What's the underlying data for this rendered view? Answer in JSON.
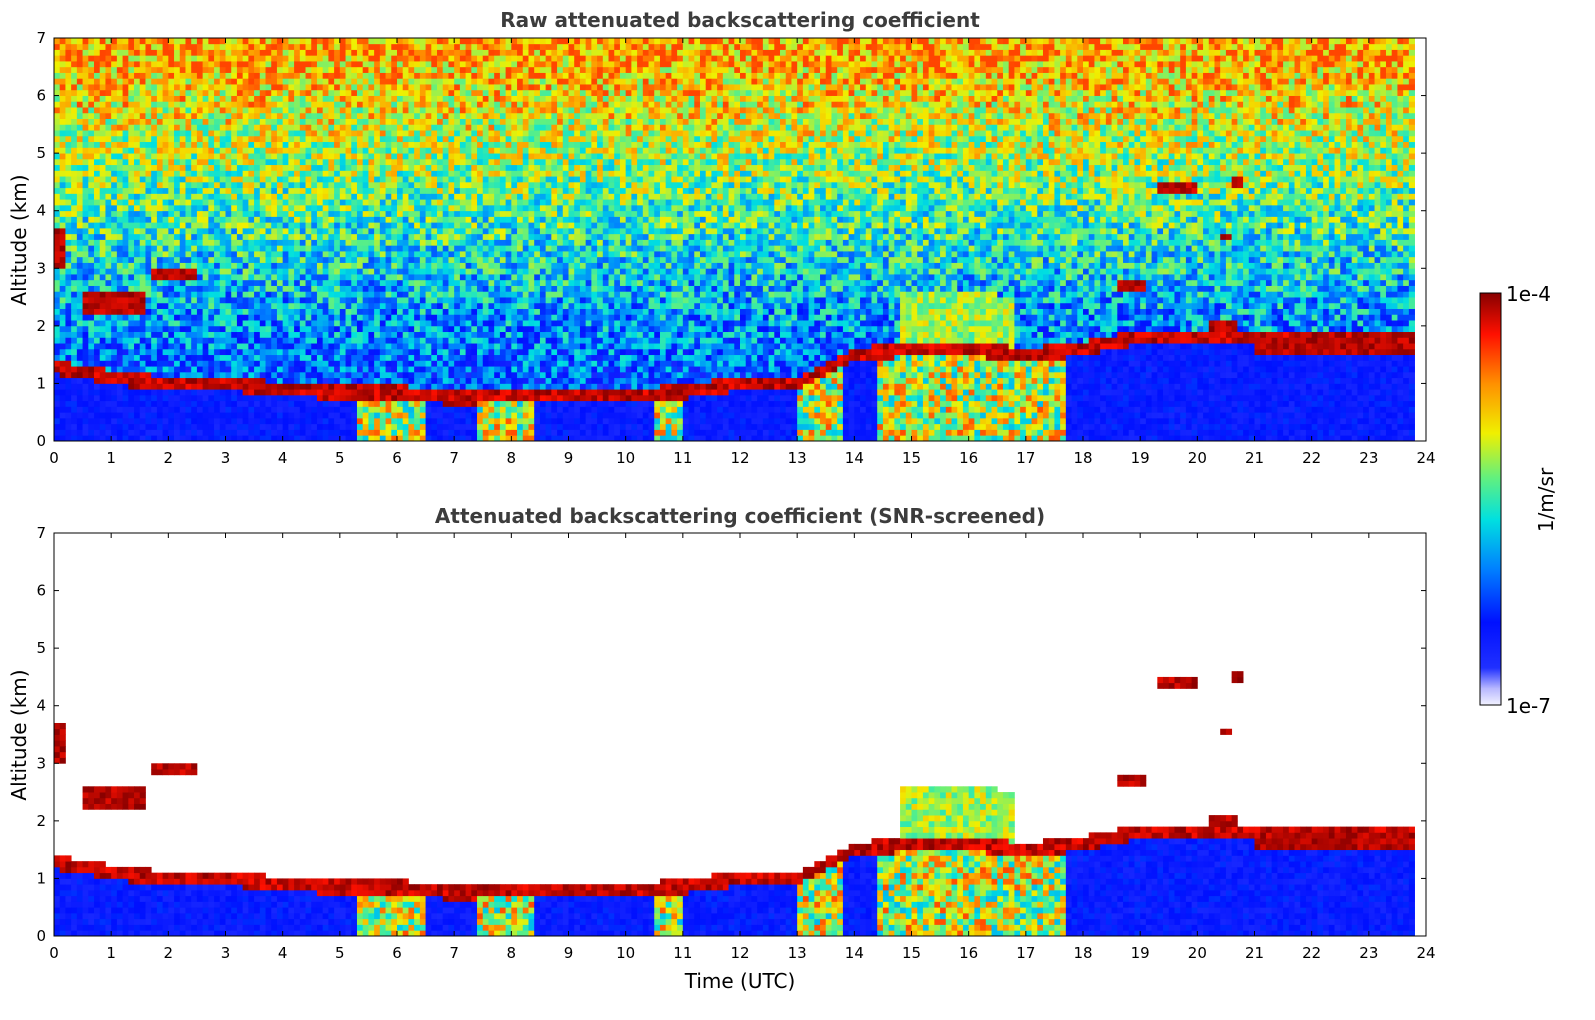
{
  "chart_data": [
    {
      "type": "heatmap",
      "title": "Raw attenuated backscattering coefficient",
      "xlabel": "",
      "ylabel": "Altitude (km)",
      "xlim": [
        0,
        24
      ],
      "ylim": [
        0,
        7
      ],
      "xticks": [
        "0",
        "1",
        "2",
        "3",
        "4",
        "5",
        "6",
        "7",
        "8",
        "9",
        "10",
        "11",
        "12",
        "13",
        "14",
        "15",
        "16",
        "17",
        "18",
        "19",
        "20",
        "21",
        "22",
        "23",
        "24"
      ],
      "yticks": [
        "0",
        "1",
        "2",
        "3",
        "4",
        "5",
        "6",
        "7"
      ],
      "grid": false,
      "screened": false,
      "background_noise": "increasing with altitude",
      "boundary_layer_top_km": [
        [
          0,
          1.3
        ],
        [
          1,
          1.1
        ],
        [
          2,
          1.0
        ],
        [
          3,
          1.0
        ],
        [
          4,
          0.9
        ],
        [
          5,
          0.85
        ],
        [
          6,
          0.85
        ],
        [
          7,
          0.75
        ],
        [
          8,
          0.8
        ],
        [
          9,
          0.8
        ],
        [
          10,
          0.8
        ],
        [
          11,
          0.85
        ],
        [
          12,
          1.0
        ],
        [
          13,
          1.0
        ],
        [
          14,
          1.5
        ],
        [
          15,
          1.6
        ],
        [
          16,
          1.6
        ],
        [
          17,
          1.5
        ],
        [
          18,
          1.6
        ],
        [
          19,
          1.8
        ]
      ],
      "elevated_layers": [
        {
          "t0": 0.0,
          "t1": 0.2,
          "z0": 3.0,
          "z1": 3.7
        },
        {
          "t0": 0.5,
          "t1": 1.6,
          "z0": 2.2,
          "z1": 2.6
        },
        {
          "t0": 1.7,
          "t1": 2.5,
          "z0": 2.8,
          "z1": 3.0
        },
        {
          "t0": 18.6,
          "t1": 19.1,
          "z0": 2.6,
          "z1": 2.8
        },
        {
          "t0": 19.3,
          "t1": 20.0,
          "z0": 4.35,
          "z1": 4.5
        },
        {
          "t0": 20.6,
          "t1": 20.8,
          "z0": 4.45,
          "z1": 4.55
        },
        {
          "t0": 20.4,
          "t1": 20.6,
          "z0": 3.5,
          "z1": 3.65
        },
        {
          "t0": 20.2,
          "t1": 20.7,
          "z0": 1.9,
          "z1": 2.1
        },
        {
          "t0": 21.0,
          "t1": 23.8,
          "z0": 1.55,
          "z1": 1.8
        }
      ],
      "precipitation_fallstreaks": [
        {
          "t0": 5.3,
          "t1": 6.5
        },
        {
          "t0": 7.4,
          "t1": 8.4
        },
        {
          "t0": 10.5,
          "t1": 11.0
        },
        {
          "t0": 13.0,
          "t1": 13.8
        },
        {
          "t0": 14.4,
          "t1": 17.7
        }
      ],
      "colorbar": {
        "label": "1/m/sr",
        "min": "1e-7",
        "max": "1e-4",
        "scale": "log",
        "colormap": "jet"
      }
    },
    {
      "type": "heatmap",
      "title": "Attenuated backscattering coefficient (SNR-screened)",
      "xlabel": "Time (UTC)",
      "ylabel": "Altitude (km)",
      "xlim": [
        0,
        24
      ],
      "ylim": [
        0,
        7
      ],
      "xticks": [
        "0",
        "1",
        "2",
        "3",
        "4",
        "5",
        "6",
        "7",
        "8",
        "9",
        "10",
        "11",
        "12",
        "13",
        "14",
        "15",
        "16",
        "17",
        "18",
        "19",
        "20",
        "21",
        "22",
        "23",
        "24"
      ],
      "yticks": [
        "0",
        "1",
        "2",
        "3",
        "4",
        "5",
        "6",
        "7"
      ],
      "grid": false,
      "screened": true,
      "colorbar": {
        "label": "1/m/sr",
        "min": "1e-7",
        "max": "1e-4",
        "scale": "log",
        "colormap": "jet"
      }
    }
  ],
  "colorbar": {
    "label": "1/m/sr",
    "max_label": "1e-4",
    "min_label": "1e-7"
  }
}
